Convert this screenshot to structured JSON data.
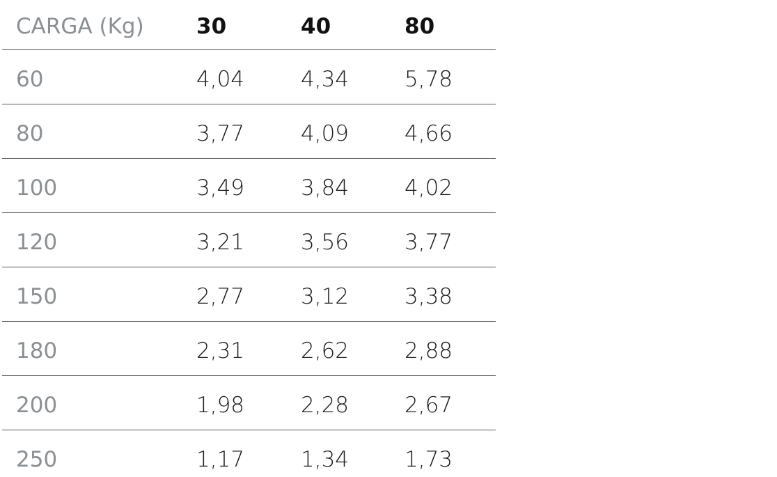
{
  "table": {
    "header": [
      "CARGA (Kg)",
      "30",
      "40",
      "80"
    ],
    "rows": [
      [
        "60",
        "4,04",
        "4,34",
        "5,78"
      ],
      [
        "80",
        "3,77",
        "4,09",
        "4,66"
      ],
      [
        "100",
        "3,49",
        "3,84",
        "4,02"
      ],
      [
        "120",
        "3,21",
        "3,56",
        "3,77"
      ],
      [
        "150",
        "2,77",
        "3,12",
        "3,38"
      ],
      [
        "180",
        "2,31",
        "2,62",
        "2,88"
      ],
      [
        "200",
        "1,98",
        "2,28",
        "2,67"
      ],
      [
        "250",
        "1,17",
        "1,34",
        "1,73"
      ]
    ]
  }
}
